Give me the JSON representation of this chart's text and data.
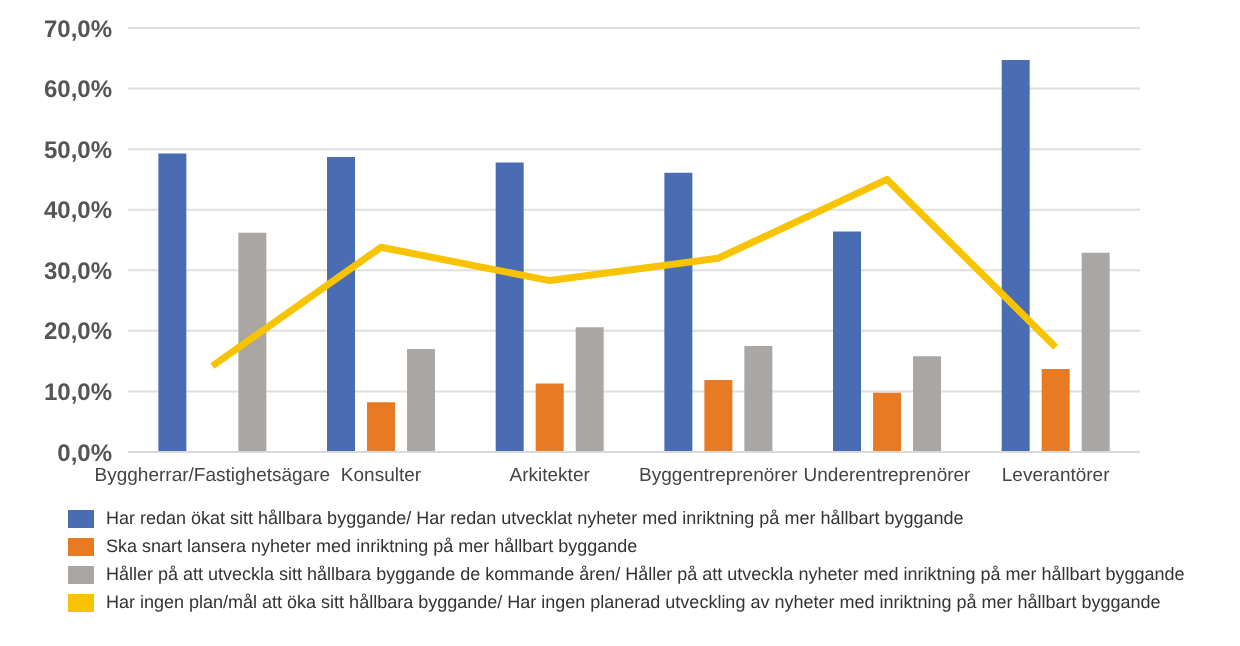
{
  "chart_data": {
    "type": "bar",
    "categories": [
      "Byggherrar/Fastighetsägare",
      "Konsulter",
      "Arkitekter",
      "Byggentreprenörer",
      "Underentreprenörer",
      "Leverantörer"
    ],
    "series": [
      {
        "name": "Har redan ökat sitt hållbara byggande/ Har redan utvecklat nyheter med inriktning på mer hållbart byggande",
        "color": "#4a6cb3",
        "values": [
          49.3,
          48.7,
          47.8,
          46.1,
          36.4,
          64.7
        ]
      },
      {
        "name": "Ska snart lansera nyheter med inriktning på mer hållbart byggande",
        "color": "#e97a24",
        "values": [
          null,
          8.2,
          11.3,
          11.9,
          9.8,
          13.7
        ]
      },
      {
        "name": "Håller på att utveckla sitt hållbara byggande de kommande åren/ Håller på att utveckla nyheter med inriktning på mer hållbart byggande",
        "color": "#aaa6a4",
        "values": [
          36.2,
          17.0,
          20.6,
          17.5,
          15.8,
          32.9
        ]
      },
      {
        "name": "Har ingen plan/mål att öka sitt hållbara byggande/ Har ingen planerad utveckling av nyheter med inriktning på mer hållbart byggande",
        "color": "#f8c300",
        "type": "line",
        "values": [
          14.2,
          33.8,
          28.3,
          32.0,
          45.0,
          17.3
        ]
      }
    ],
    "ylim": [
      0,
      70
    ],
    "yticks": [
      {
        "value": 0,
        "label": "0,0%"
      },
      {
        "value": 10,
        "label": "10,0%"
      },
      {
        "value": 20,
        "label": "20,0%"
      },
      {
        "value": 30,
        "label": "30,0%"
      },
      {
        "value": 40,
        "label": "40,0%"
      },
      {
        "value": 50,
        "label": "50,0%"
      },
      {
        "value": 60,
        "label": "60,0%"
      },
      {
        "value": 70,
        "label": "70,0%"
      }
    ],
    "grid": "y",
    "legend": "bottom",
    "marker": "none"
  }
}
